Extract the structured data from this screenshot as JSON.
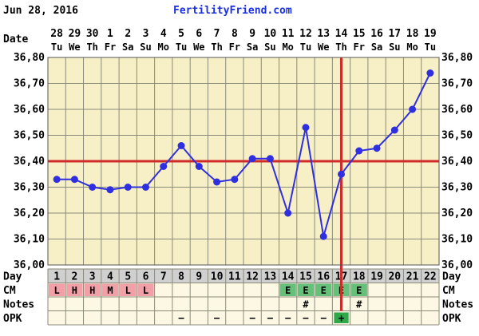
{
  "header": {
    "date": "Jun 28, 2016",
    "brand": "FertilityFriend.com"
  },
  "colors": {
    "background": "#ffffff",
    "plot_background": "#f7f0c6",
    "grid": "#8a8a7a",
    "line": "#2f2fe0",
    "coverline": "#d02b2b",
    "ovulation_line": "#d02b2b",
    "cm_red": "#f2a0a8",
    "cm_green": "#66c07a",
    "opk_green": "#2fa84a",
    "row_bg": "#fdf8e4"
  },
  "chart_data": {
    "type": "line",
    "title": "",
    "ylabel": "",
    "xlabel": "",
    "ylim": [
      36.0,
      36.8
    ],
    "yticks": [
      "36,00",
      "36,10",
      "36,20",
      "36,30",
      "36,40",
      "36,50",
      "36,60",
      "36,70",
      "36,80"
    ],
    "y_axis_label_left": "Date",
    "dates": [
      "28",
      "29",
      "30",
      "1",
      "2",
      "3",
      "4",
      "5",
      "6",
      "7",
      "8",
      "9",
      "10",
      "11",
      "12",
      "13",
      "14",
      "15",
      "16",
      "17",
      "18",
      "19"
    ],
    "weekdays": [
      "Tu",
      "We",
      "Th",
      "Fr",
      "Sa",
      "Su",
      "Mo",
      "Tu",
      "We",
      "Th",
      "Fr",
      "Sa",
      "Su",
      "Mo",
      "Tu",
      "We",
      "Th",
      "Fr",
      "Sa",
      "Su",
      "Mo",
      "Tu"
    ],
    "day_row_label": "Day",
    "days": [
      "1",
      "2",
      "3",
      "4",
      "5",
      "6",
      "7",
      "8",
      "9",
      "10",
      "11",
      "12",
      "13",
      "14",
      "15",
      "16",
      "17",
      "18",
      "19",
      "20",
      "21",
      "22"
    ],
    "temps": [
      36.33,
      36.33,
      36.3,
      36.29,
      36.3,
      36.3,
      36.38,
      36.46,
      36.38,
      36.32,
      36.33,
      36.41,
      36.41,
      36.2,
      36.53,
      36.11,
      36.35,
      36.44,
      36.45,
      36.52,
      36.6,
      36.74
    ],
    "coverline": 36.4,
    "ovulation_day": 17,
    "grid": true,
    "rows": {
      "cm": {
        "label": "CM",
        "values": [
          "L",
          "H",
          "H",
          "M",
          "L",
          "L",
          "",
          "",
          "",
          "",
          "",
          "",
          "",
          "E",
          "E",
          "E",
          "E",
          "E",
          "",
          "",
          "",
          ""
        ]
      },
      "notes": {
        "label": "Notes",
        "values": [
          "",
          "",
          "",
          "",
          "",
          "",
          "",
          "",
          "",
          "",
          "",
          "",
          "",
          "",
          "#",
          "",
          "",
          "#",
          "",
          "",
          "",
          ""
        ]
      },
      "opk": {
        "label": "OPK",
        "values": [
          "",
          "",
          "",
          "",
          "",
          "",
          "",
          "−",
          "",
          "−",
          "",
          "−",
          "−",
          "−",
          "−",
          "−",
          "+",
          "",
          "",
          "",
          "",
          ""
        ]
      }
    }
  }
}
